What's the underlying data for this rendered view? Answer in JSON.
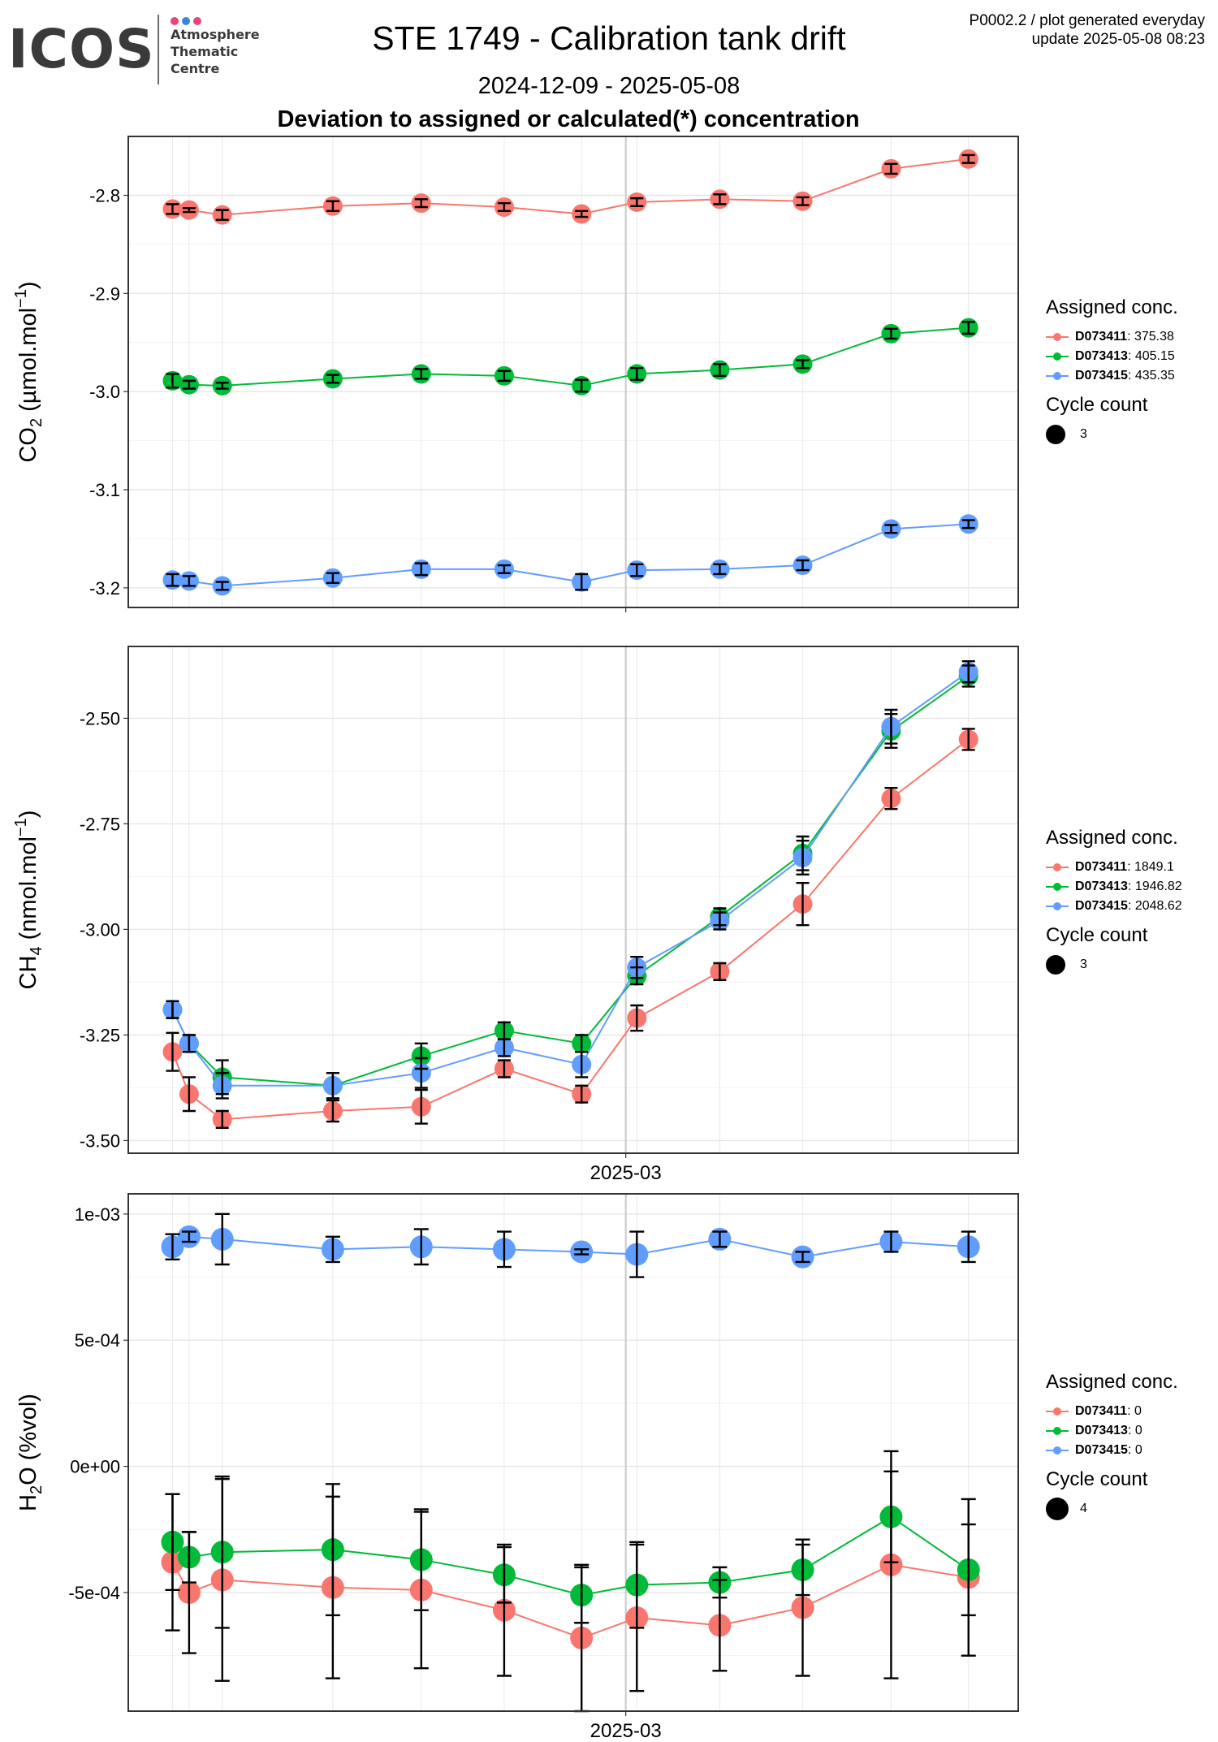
{
  "header": {
    "logo_text": "ICOS",
    "logo_sub": [
      "Atmosphere",
      "Thematic",
      "Centre"
    ],
    "logo_dot_colors": [
      "#e8457a",
      "#3a86d8",
      "#e8457a"
    ],
    "title": "STE 1749 - Calibration tank drift",
    "date_range": "2024-12-09 - 2025-05-08",
    "subtitle": "Deviation to assigned or calculated(*) concentration",
    "meta_line1": "P0002.2 / plot generated everyday",
    "meta_line2": "update  2025-05-08 08:23"
  },
  "colors": {
    "D073411": "#F8766D",
    "D073413": "#00BA38",
    "D073415": "#619CFF"
  },
  "chart_data": [
    {
      "type": "line",
      "ylabel": {
        "species": "CO",
        "sub": "2",
        "unit": " (µmol.mol",
        "sup": "−1",
        "close": ")"
      },
      "xtick_label": "2025-03",
      "x": [
        "2024-12-09",
        "2024-12-12",
        "2024-12-18",
        "2025-01-07",
        "2025-01-23",
        "2025-02-07",
        "2025-02-21",
        "2025-03-03",
        "2025-03-18",
        "2025-04-02",
        "2025-04-18",
        "2025-05-02"
      ],
      "ylim": [
        -3.22,
        -2.74
      ],
      "yticks": [
        -3.2,
        -3.1,
        -3.0,
        -2.9,
        -2.8
      ],
      "ytick_labels": [
        "-3.2",
        "-3.1",
        "-3.0",
        "-2.9",
        "-2.8"
      ],
      "series": [
        {
          "name": "D073411",
          "values": [
            -2.814,
            -2.815,
            -2.82,
            -2.811,
            -2.808,
            -2.812,
            -2.819,
            -2.807,
            -2.804,
            -2.806,
            -2.773,
            -2.763
          ],
          "err": [
            0.005,
            0.002,
            0.005,
            0.005,
            0.004,
            0.004,
            0.003,
            0.004,
            0.005,
            0.004,
            0.005,
            0.004
          ]
        },
        {
          "name": "D073413",
          "values": [
            -2.989,
            -2.993,
            -2.994,
            -2.987,
            -2.982,
            -2.984,
            -2.994,
            -2.982,
            -2.978,
            -2.972,
            -2.941,
            -2.935
          ],
          "err": [
            0.007,
            0.004,
            0.003,
            0.004,
            0.005,
            0.005,
            0.006,
            0.006,
            0.006,
            0.004,
            0.005,
            0.006
          ]
        },
        {
          "name": "D073415",
          "values": [
            -3.192,
            -3.193,
            -3.198,
            -3.19,
            -3.181,
            -3.181,
            -3.194,
            -3.182,
            -3.181,
            -3.177,
            -3.14,
            -3.135
          ],
          "err": [
            0.006,
            0.005,
            0.004,
            0.005,
            0.006,
            0.004,
            0.008,
            0.006,
            0.005,
            0.005,
            0.004,
            0.004
          ]
        }
      ],
      "legend": {
        "title": "Assigned conc.",
        "entries": [
          {
            "name": "D073411",
            "value": ": 375.38"
          },
          {
            "name": "D073413",
            "value": ": 405.15"
          },
          {
            "name": "D073415",
            "value": ": 435.35"
          }
        ],
        "cycle_title": "Cycle count",
        "cycle_value": "3"
      }
    },
    {
      "type": "line",
      "ylabel": {
        "species": "CH",
        "sub": "4",
        "unit": " (nmol.mol",
        "sup": "−1",
        "close": ")"
      },
      "xtick_label": "2025-03",
      "x": [
        "2024-12-09",
        "2024-12-12",
        "2024-12-18",
        "2025-01-07",
        "2025-01-23",
        "2025-02-07",
        "2025-02-21",
        "2025-03-03",
        "2025-03-18",
        "2025-04-02",
        "2025-04-18",
        "2025-05-02"
      ],
      "ylim": [
        -3.53,
        -2.33
      ],
      "yticks": [
        -3.5,
        -3.25,
        -3.0,
        -2.75,
        -2.5
      ],
      "ytick_labels": [
        "-3.50",
        "-3.25",
        "-3.00",
        "-2.75",
        "-2.50"
      ],
      "series": [
        {
          "name": "D073411",
          "values": [
            -3.29,
            -3.39,
            -3.45,
            -3.43,
            -3.42,
            -3.33,
            -3.39,
            -3.21,
            -3.1,
            -2.94,
            -2.69,
            -2.55
          ],
          "err": [
            0.045,
            0.04,
            0.02,
            0.025,
            0.04,
            0.02,
            0.02,
            0.03,
            0.02,
            0.05,
            0.025,
            0.025
          ]
        },
        {
          "name": "D073413",
          "values": [
            -3.19,
            -3.27,
            -3.35,
            -3.37,
            -3.3,
            -3.24,
            -3.27,
            -3.11,
            -2.97,
            -2.82,
            -2.53,
            -2.4
          ],
          "err": [
            0.02,
            0.02,
            0.04,
            0.03,
            0.03,
            0.02,
            0.02,
            0.02,
            0.02,
            0.04,
            0.04,
            0.025
          ]
        },
        {
          "name": "D073415",
          "values": [
            -3.19,
            -3.27,
            -3.37,
            -3.37,
            -3.34,
            -3.28,
            -3.32,
            -3.09,
            -2.98,
            -2.83,
            -2.52,
            -2.39
          ],
          "err": [
            0.02,
            0.02,
            0.03,
            0.03,
            0.035,
            0.02,
            0.03,
            0.025,
            0.02,
            0.04,
            0.04,
            0.025
          ]
        }
      ],
      "legend": {
        "title": "Assigned conc.",
        "entries": [
          {
            "name": "D073411",
            "value": ": 1849.1"
          },
          {
            "name": "D073413",
            "value": ": 1946.82"
          },
          {
            "name": "D073415",
            "value": ": 2048.62"
          }
        ],
        "cycle_title": "Cycle count",
        "cycle_value": "3"
      }
    },
    {
      "type": "line",
      "ylabel": {
        "species": "H",
        "sub": "2",
        "unit": "O (%vol)",
        "sup": "",
        "close": ""
      },
      "xtick_label": "2025-03",
      "x": [
        "2024-12-09",
        "2024-12-12",
        "2024-12-18",
        "2025-01-07",
        "2025-01-23",
        "2025-02-07",
        "2025-02-21",
        "2025-03-03",
        "2025-03-18",
        "2025-04-02",
        "2025-04-18",
        "2025-05-02"
      ],
      "ylim": [
        -0.00097,
        0.00108
      ],
      "yticks": [
        -0.0005,
        0.0,
        0.0005,
        0.001
      ],
      "ytick_labels": [
        "-5e-04",
        "0e+00",
        "5e-04",
        "1e-03"
      ],
      "series": [
        {
          "name": "D073411",
          "values": [
            -0.00038,
            -0.0005,
            -0.00045,
            -0.00048,
            -0.00049,
            -0.00057,
            -0.00068,
            -0.0006,
            -0.00063,
            -0.00056,
            -0.00039,
            -0.00044
          ],
          "err": [
            0.00027,
            0.00024,
            0.0004,
            0.00036,
            0.00031,
            0.00026,
            0.00029,
            0.00029,
            0.00018,
            0.00027,
            0.00045,
            0.00031
          ]
        },
        {
          "name": "D073413",
          "values": [
            -0.0003,
            -0.00036,
            -0.00034,
            -0.00033,
            -0.00037,
            -0.00043,
            -0.00051,
            -0.00047,
            -0.00046,
            -0.00041,
            -0.0002,
            -0.00041
          ],
          "err": [
            0.00019,
            0.0001,
            0.0003,
            0.00026,
            0.0002,
            0.00011,
            0.00011,
            0.00017,
            6e-05,
            0.0001,
            0.00018,
            0.00018
          ]
        },
        {
          "name": "D073415",
          "values": [
            0.00087,
            0.00091,
            0.0009,
            0.00086,
            0.00087,
            0.00086,
            0.00085,
            0.00084,
            0.0009,
            0.00083,
            0.00089,
            0.00087
          ],
          "err": [
            5e-05,
            2e-05,
            0.0001,
            5e-05,
            7e-05,
            7e-05,
            1e-05,
            9e-05,
            3e-05,
            2e-05,
            4e-05,
            6e-05
          ]
        }
      ],
      "legend": {
        "title": "Assigned conc.",
        "entries": [
          {
            "name": "D073411",
            "value": ": 0"
          },
          {
            "name": "D073413",
            "value": ": 0"
          },
          {
            "name": "D073415",
            "value": ": 0"
          }
        ],
        "cycle_title": "Cycle count",
        "cycle_value": "4"
      }
    }
  ]
}
